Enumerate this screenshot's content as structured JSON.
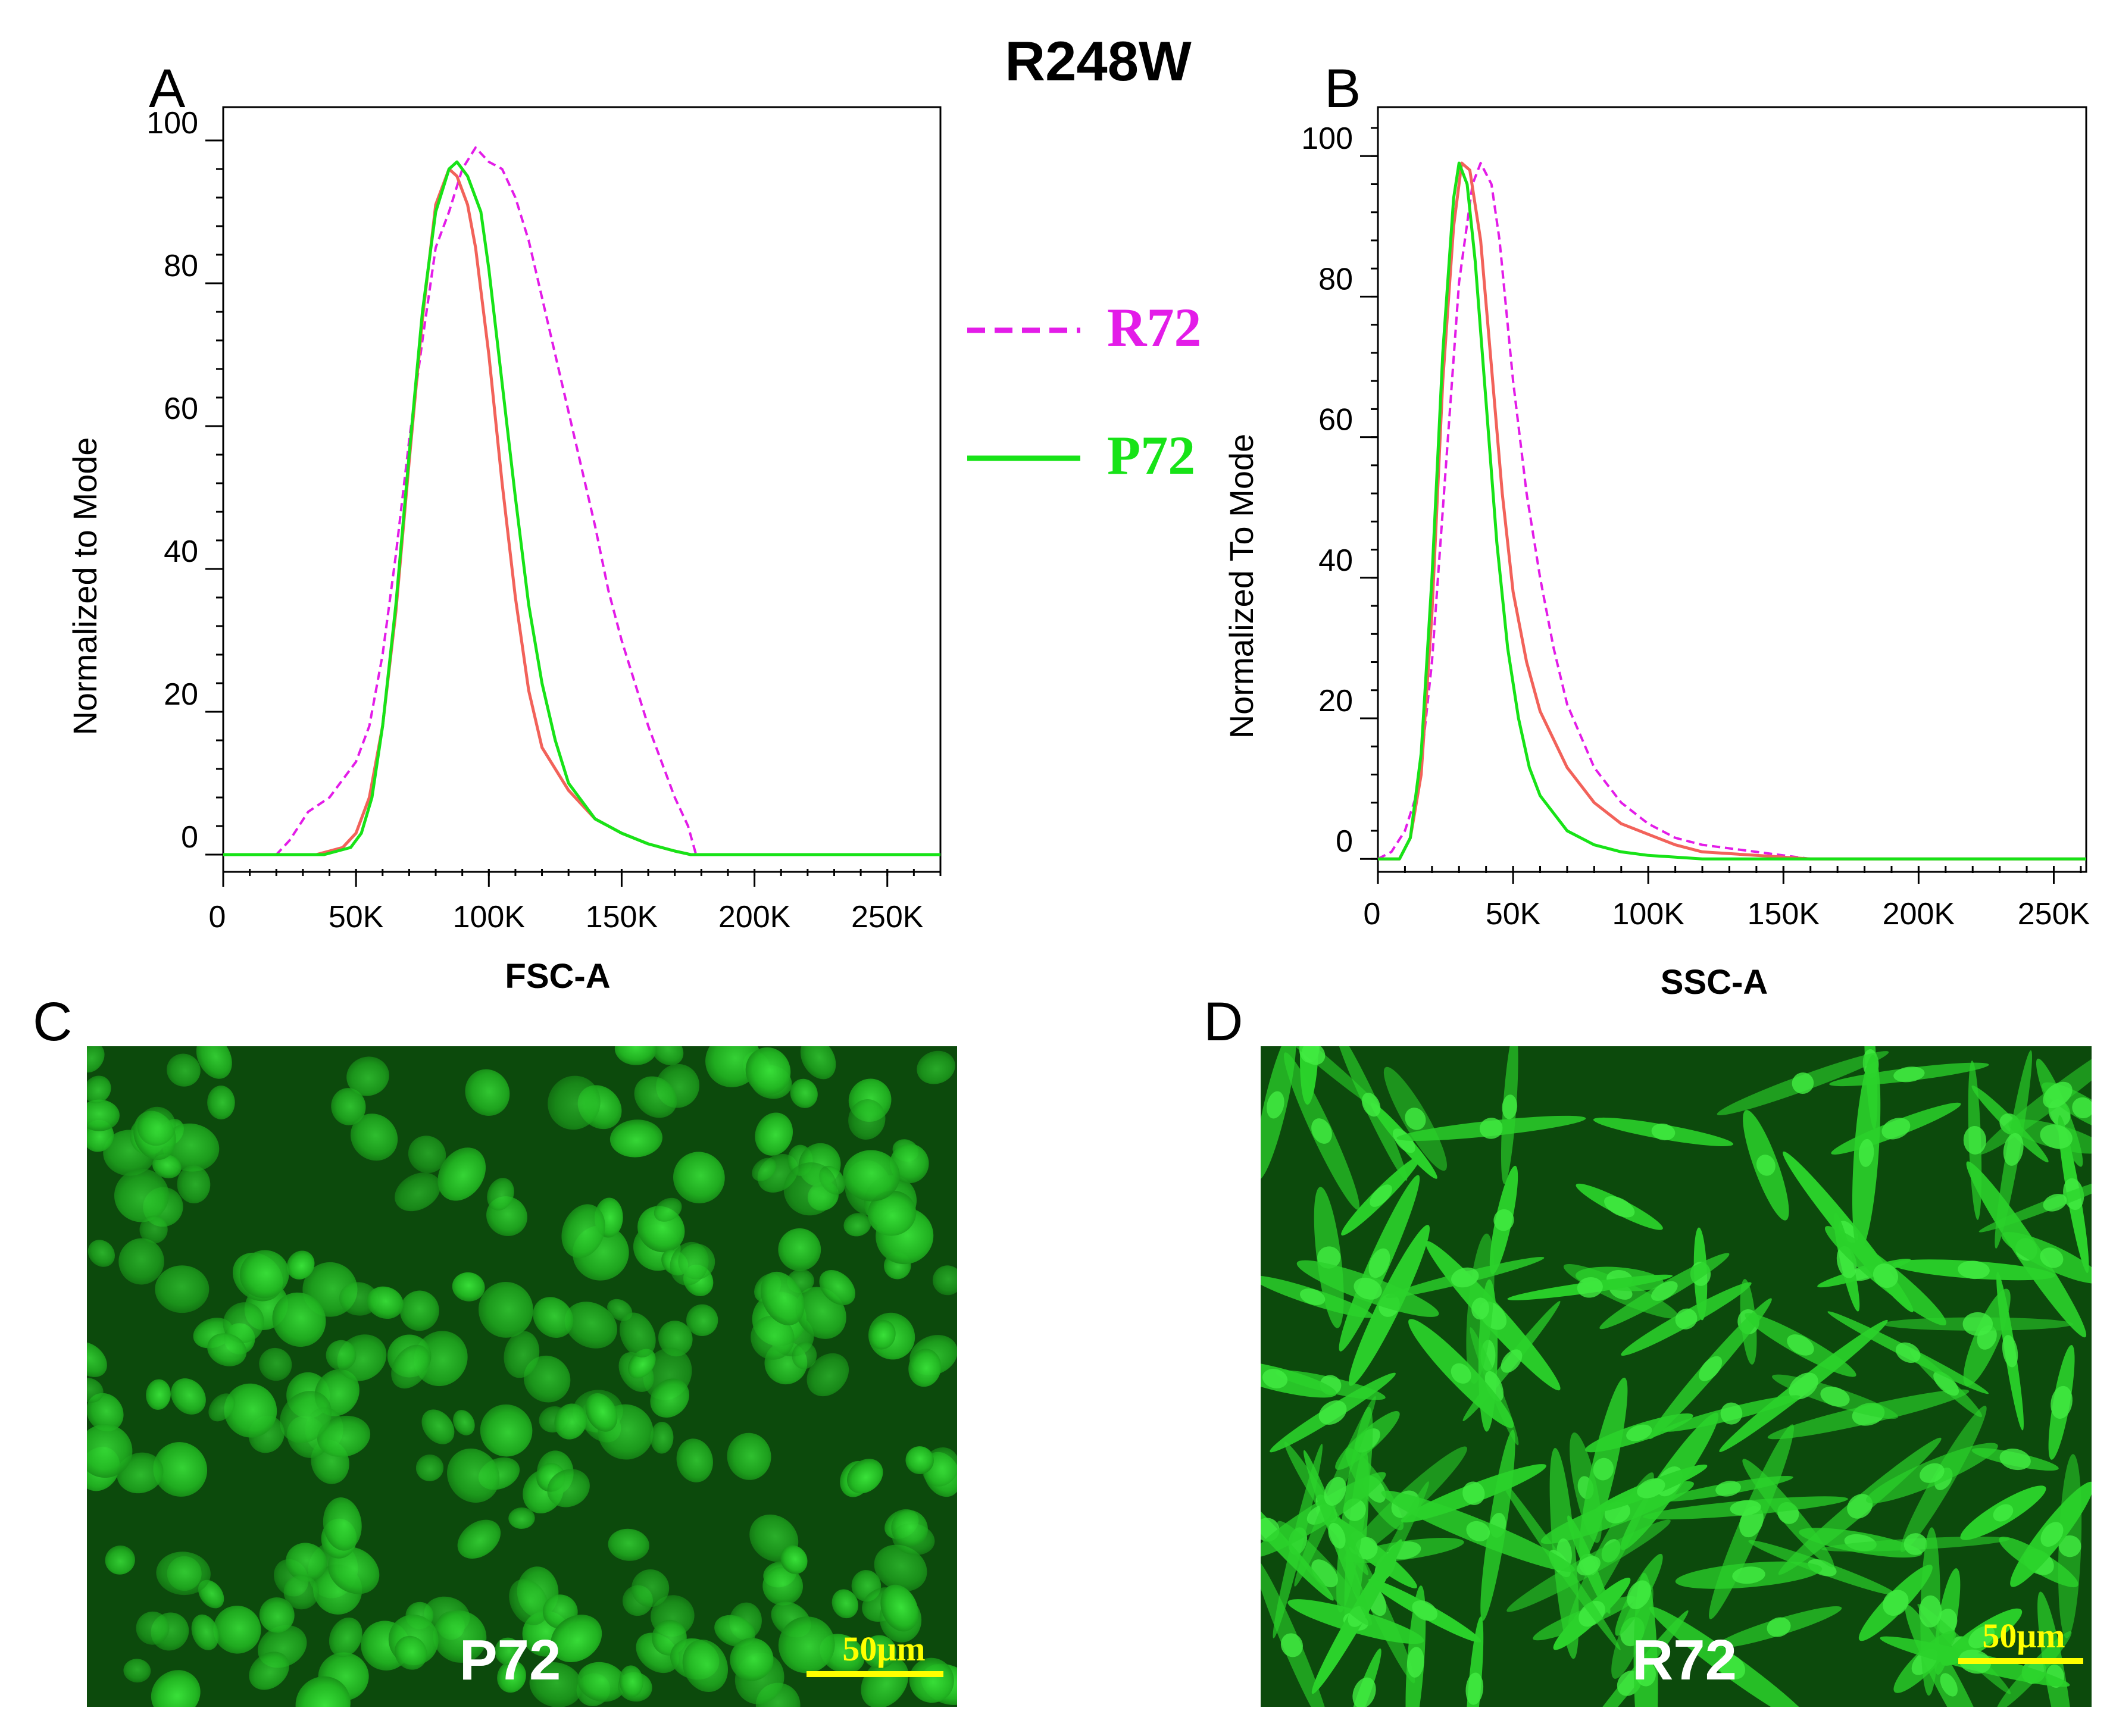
{
  "figure": {
    "title": "R248W",
    "panel_labels": {
      "a": "A",
      "b": "B",
      "c": "C",
      "d": "D"
    },
    "legend": [
      {
        "label": "R72",
        "color": "#e31ce8",
        "style": "dashed"
      },
      {
        "label": "P72",
        "color": "#17e317",
        "style": "solid"
      }
    ],
    "micrographs": [
      {
        "panel": "C",
        "label": "P72",
        "scale_bar": "50μm",
        "morphology": "round-cobblestone"
      },
      {
        "panel": "D",
        "label": "R72",
        "scale_bar": "50μm",
        "morphology": "spindle-elongated"
      }
    ],
    "colors": {
      "r72": "#e31ce8",
      "p72": "#17e317",
      "third_series": "#f2625a",
      "scale_text": "#ffff00",
      "micro_bg": "#0c4a0c"
    }
  },
  "chart_data": [
    {
      "type": "line",
      "panel": "A",
      "xlabel": "FSC-A",
      "ylabel": "Normalized to Mode",
      "xlim": [
        0,
        270000
      ],
      "ylim": [
        -2,
        103
      ],
      "xticks": [
        0,
        50000,
        100000,
        150000,
        200000,
        250000
      ],
      "xtick_labels": [
        "0",
        "50K",
        "100K",
        "150K",
        "200K",
        "250K"
      ],
      "yticks": [
        0,
        20,
        40,
        60,
        80,
        100
      ],
      "ytick_labels": [
        "0",
        "20",
        "40",
        "60",
        "80",
        "100"
      ],
      "series": [
        {
          "name": "R72",
          "color": "#e31ce8",
          "dash": true,
          "x": [
            0,
            20000,
            25000,
            32000,
            40000,
            50000,
            55000,
            60000,
            65000,
            70000,
            75000,
            80000,
            85000,
            90000,
            95000,
            100000,
            105000,
            110000,
            115000,
            120000,
            125000,
            130000,
            135000,
            140000,
            145000,
            150000,
            155000,
            160000,
            165000,
            170000,
            175000,
            178000,
            190000,
            270000
          ],
          "y": [
            0,
            0,
            2,
            6,
            8,
            13,
            18,
            28,
            42,
            58,
            72,
            85,
            90,
            96,
            99,
            97,
            96,
            92,
            86,
            78,
            70,
            62,
            54,
            46,
            37,
            30,
            24,
            18,
            13,
            8,
            4,
            0,
            0,
            0
          ]
        },
        {
          "x": [
            0,
            35000,
            45000,
            50000,
            55000,
            60000,
            65000,
            70000,
            75000,
            80000,
            85000,
            88000,
            92000,
            95000,
            100000,
            105000,
            110000,
            115000,
            120000,
            130000,
            140000,
            150000,
            160000,
            170000,
            176000,
            190000,
            270000
          ],
          "y": [
            0,
            0,
            1,
            3,
            8,
            18,
            34,
            55,
            75,
            91,
            96,
            95,
            91,
            85,
            70,
            52,
            36,
            23,
            15,
            9,
            5,
            3,
            1.5,
            0.5,
            0,
            0,
            0
          ],
          "color": "#f2625a"
        },
        {
          "name": "P72",
          "color": "#17e317",
          "x": [
            0,
            38000,
            48000,
            52000,
            56000,
            60000,
            65000,
            70000,
            75000,
            80000,
            85000,
            88000,
            92000,
            97000,
            100000,
            105000,
            110000,
            115000,
            120000,
            125000,
            130000,
            140000,
            150000,
            160000,
            170000,
            176000,
            190000,
            270000
          ],
          "y": [
            0,
            0,
            1,
            3,
            8,
            18,
            35,
            56,
            76,
            90,
            96,
            97,
            95,
            90,
            82,
            66,
            50,
            35,
            24,
            16,
            10,
            5,
            3,
            1.5,
            0.5,
            0,
            0,
            0
          ]
        }
      ]
    },
    {
      "type": "line",
      "panel": "B",
      "xlabel": "SSC-A",
      "ylabel": "Normalized To Mode",
      "xlim": [
        0,
        262000
      ],
      "ylim": [
        -1,
        104
      ],
      "xticks": [
        0,
        50000,
        100000,
        150000,
        200000,
        250000
      ],
      "xtick_labels": [
        "0",
        "50K",
        "100K",
        "150K",
        "200K",
        "250K"
      ],
      "yticks": [
        0,
        20,
        40,
        60,
        80,
        100
      ],
      "ytick_labels": [
        "0",
        "20",
        "40",
        "60",
        "80",
        "100"
      ],
      "series": [
        {
          "name": "R72",
          "color": "#e31ce8",
          "dash": true,
          "x": [
            0,
            5000,
            10000,
            15000,
            20000,
            25000,
            30000,
            35000,
            38000,
            42000,
            45000,
            50000,
            55000,
            60000,
            65000,
            70000,
            80000,
            90000,
            100000,
            110000,
            120000,
            130000,
            140000,
            150000,
            160000,
            262000
          ],
          "y": [
            0,
            1,
            4,
            10,
            28,
            55,
            82,
            96,
            99,
            96,
            88,
            68,
            52,
            40,
            30,
            22,
            13,
            8,
            5,
            3,
            2,
            1.5,
            1,
            0.5,
            0,
            0
          ]
        },
        {
          "x": [
            0,
            8000,
            12000,
            16000,
            20000,
            24000,
            28000,
            31000,
            34000,
            38000,
            42000,
            46000,
            50000,
            55000,
            60000,
            70000,
            80000,
            90000,
            100000,
            110000,
            120000,
            140000,
            160000,
            262000
          ],
          "y": [
            0,
            0,
            3,
            12,
            35,
            68,
            90,
            99,
            98,
            88,
            70,
            52,
            38,
            28,
            21,
            13,
            8,
            5,
            3.5,
            2,
            1,
            0.5,
            0,
            0
          ],
          "color": "#f2625a"
        },
        {
          "name": "P72",
          "color": "#17e317",
          "x": [
            0,
            8000,
            12000,
            16000,
            20000,
            24000,
            28000,
            30000,
            33000,
            36000,
            40000,
            44000,
            48000,
            52000,
            56000,
            60000,
            70000,
            80000,
            90000,
            100000,
            120000,
            262000
          ],
          "y": [
            0,
            0,
            3,
            15,
            40,
            72,
            94,
            99,
            96,
            85,
            65,
            45,
            30,
            20,
            13,
            9,
            4,
            2,
            1,
            0.5,
            0,
            0
          ]
        }
      ]
    }
  ]
}
